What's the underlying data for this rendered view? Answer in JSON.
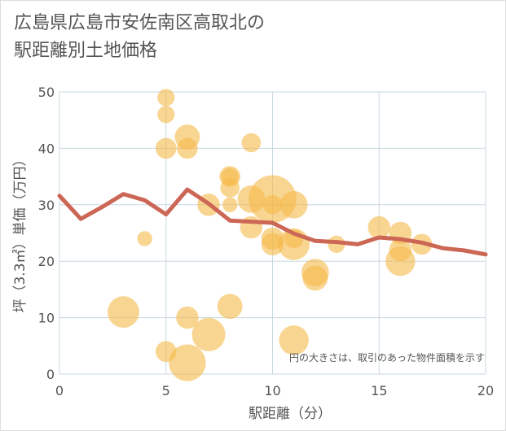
{
  "chart_data": {
    "type": "scatter",
    "title": "広島県広島市安佐南区高取北の\n駅距離別土地価格",
    "xlabel": "駅距離（分）",
    "ylabel": "坪（3.3㎡）単価（万円）",
    "xlim": [
      0,
      20
    ],
    "ylim": [
      0,
      50
    ],
    "xticks": [
      "0",
      "5",
      "10",
      "15",
      "20"
    ],
    "yticks": [
      "0",
      "10",
      "20",
      "30",
      "40",
      "50"
    ],
    "note": "円の大きさは、取引のあった物件面積を示す",
    "grid": true,
    "colors": {
      "bubble": "#f5b94a",
      "line": "#cc6655",
      "grid": "#c8d8e0",
      "text": "#555555"
    },
    "scatter": [
      {
        "x": 3,
        "y": 11,
        "size": 7
      },
      {
        "x": 4,
        "y": 24,
        "size": 1
      },
      {
        "x": 5,
        "y": 49,
        "size": 1.5
      },
      {
        "x": 5,
        "y": 46,
        "size": 1.5
      },
      {
        "x": 5,
        "y": 40,
        "size": 2.5
      },
      {
        "x": 5,
        "y": 4,
        "size": 2.5
      },
      {
        "x": 6,
        "y": 42,
        "size": 4
      },
      {
        "x": 6,
        "y": 40,
        "size": 2.5
      },
      {
        "x": 6,
        "y": 10,
        "size": 3
      },
      {
        "x": 6,
        "y": 2,
        "size": 10
      },
      {
        "x": 7,
        "y": 30,
        "size": 3
      },
      {
        "x": 7,
        "y": 7,
        "size": 8
      },
      {
        "x": 8,
        "y": 35,
        "size": 2.5
      },
      {
        "x": 8,
        "y": 35,
        "size": 1.5
      },
      {
        "x": 8,
        "y": 33,
        "size": 2
      },
      {
        "x": 8,
        "y": 30,
        "size": 1
      },
      {
        "x": 8,
        "y": 12,
        "size": 4
      },
      {
        "x": 9,
        "y": 41,
        "size": 2
      },
      {
        "x": 9,
        "y": 31,
        "size": 5
      },
      {
        "x": 9,
        "y": 26,
        "size": 3
      },
      {
        "x": 10,
        "y": 31,
        "size": 18
      },
      {
        "x": 10,
        "y": 30,
        "size": 2
      },
      {
        "x": 10,
        "y": 24,
        "size": 3
      },
      {
        "x": 10,
        "y": 23,
        "size": 3
      },
      {
        "x": 11,
        "y": 30,
        "size": 5
      },
      {
        "x": 11,
        "y": 24,
        "size": 2
      },
      {
        "x": 11,
        "y": 23,
        "size": 7
      },
      {
        "x": 11,
        "y": 6,
        "size": 6
      },
      {
        "x": 12,
        "y": 18,
        "size": 5
      },
      {
        "x": 12,
        "y": 17,
        "size": 4
      },
      {
        "x": 13,
        "y": 23,
        "size": 1.5
      },
      {
        "x": 15,
        "y": 26,
        "size": 3
      },
      {
        "x": 16,
        "y": 25,
        "size": 3
      },
      {
        "x": 16,
        "y": 22,
        "size": 3
      },
      {
        "x": 16,
        "y": 20,
        "size": 6
      },
      {
        "x": 17,
        "y": 23,
        "size": 2.5
      }
    ],
    "line": {
      "x": [
        0,
        1,
        2,
        3,
        4,
        5,
        6,
        7,
        8,
        9,
        10,
        11,
        12,
        13,
        14,
        15,
        16,
        17,
        18,
        19,
        20
      ],
      "y": [
        31.6,
        27.5,
        29.6,
        31.9,
        30.8,
        28.3,
        32.7,
        30.2,
        27.2,
        27.0,
        26.8,
        24.9,
        23.6,
        23.4,
        23.0,
        24.2,
        23.9,
        23.3,
        22.3,
        21.9,
        21.2
      ]
    }
  }
}
